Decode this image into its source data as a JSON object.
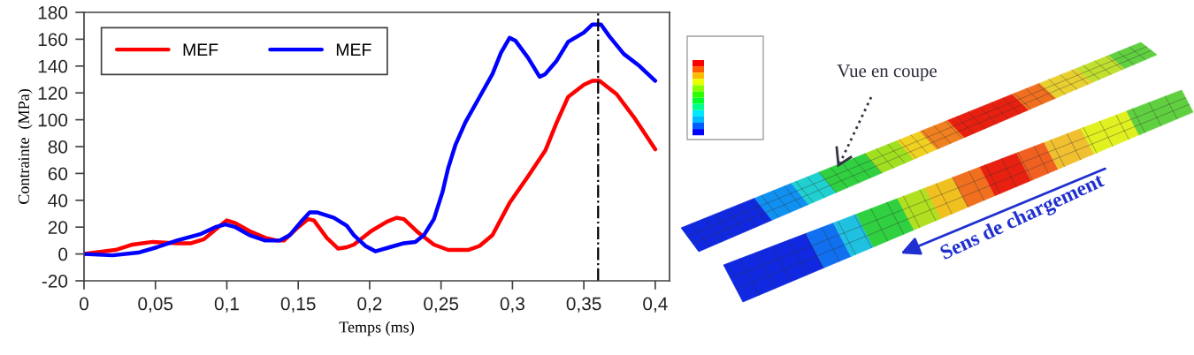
{
  "chart_data": {
    "type": "line",
    "xlabel": "Temps (ms)",
    "ylabel": "Contrainte  (MPa)",
    "xlim": [
      0,
      0.41
    ],
    "xticks": [
      0,
      {
        "value": 0.05,
        "label": "0,05"
      },
      {
        "value": 0.1,
        "label": "0,1"
      },
      {
        "value": 0.15,
        "label": "0,15"
      },
      {
        "value": 0.2,
        "label": "0,2"
      },
      {
        "value": 0.25,
        "label": "0,25"
      },
      {
        "value": 0.3,
        "label": "0,3"
      },
      {
        "value": 0.35,
        "label": "0,35"
      },
      {
        "value": 0.4,
        "label": "0,4"
      }
    ],
    "ylim": [
      -20,
      180
    ],
    "yticks": [
      -20,
      0,
      20,
      40,
      60,
      80,
      100,
      120,
      140,
      160,
      180
    ],
    "legend": "top left",
    "series": [
      {
        "name": "MEF",
        "color": "#ff0000",
        "x": [
          0,
          0.022,
          0.034,
          0.048,
          0.065,
          0.075,
          0.084,
          0.094,
          0.1,
          0.106,
          0.116,
          0.127,
          0.135,
          0.14,
          0.15,
          0.157,
          0.161,
          0.17,
          0.178,
          0.184,
          0.189,
          0.201,
          0.212,
          0.219,
          0.224,
          0.234,
          0.245,
          0.255,
          0.269,
          0.277,
          0.286,
          0.298,
          0.311,
          0.323,
          0.331,
          0.339,
          0.35,
          0.356,
          0.361,
          0.373,
          0.385,
          0.4
        ],
        "values": [
          0,
          3,
          7,
          9,
          8,
          8,
          11,
          20,
          25,
          23,
          17,
          12,
          10,
          10,
          20,
          26,
          25,
          12,
          4,
          5,
          7,
          17,
          24,
          27,
          26,
          16,
          7,
          3,
          3,
          6,
          14,
          38,
          58,
          77,
          98,
          117,
          126,
          129,
          129,
          119,
          102,
          78
        ]
      },
      {
        "name": "MEF",
        "color": "#0000ff",
        "x": [
          0,
          0.02,
          0.038,
          0.051,
          0.065,
          0.082,
          0.092,
          0.099,
          0.106,
          0.116,
          0.127,
          0.137,
          0.144,
          0.152,
          0.158,
          0.163,
          0.175,
          0.184,
          0.189,
          0.197,
          0.204,
          0.214,
          0.224,
          0.232,
          0.238,
          0.245,
          0.251,
          0.255,
          0.26,
          0.267,
          0.277,
          0.286,
          0.292,
          0.298,
          0.302,
          0.311,
          0.319,
          0.323,
          0.331,
          0.339,
          0.35,
          0.356,
          0.362,
          0.368,
          0.378,
          0.389,
          0.4
        ],
        "values": [
          0,
          -1,
          1,
          5,
          10,
          15,
          20,
          22,
          20,
          14,
          10,
          10,
          14,
          24,
          31,
          31,
          27,
          21,
          14,
          6,
          2,
          5,
          8,
          9,
          14,
          26,
          46,
          64,
          81,
          98,
          117,
          134,
          150,
          161,
          159,
          146,
          132,
          134,
          144,
          158,
          165,
          171,
          171,
          162,
          149,
          140,
          129
        ]
      }
    ],
    "ref_lines": [
      {
        "axis": "x",
        "value": 0.36,
        "color": "#000000",
        "line_style": "dashdot"
      }
    ],
    "annotations": [
      "Vue en coupe",
      "Sens de chargement"
    ]
  }
}
